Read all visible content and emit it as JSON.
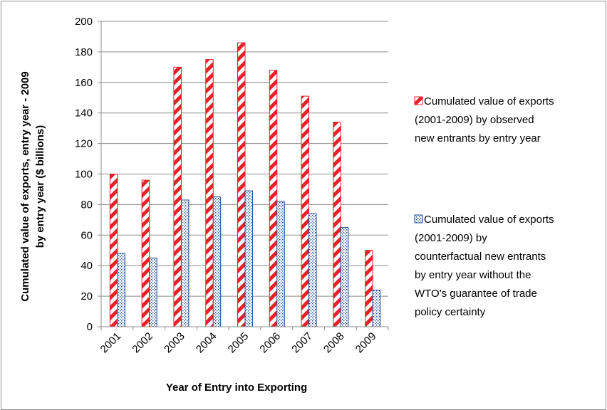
{
  "chart_data": {
    "type": "bar",
    "categories": [
      "2001",
      "2002",
      "2003",
      "2004",
      "2005",
      "2006",
      "2007",
      "2008",
      "2009"
    ],
    "series": [
      {
        "name_lines": [
          "Cumulated value of exports",
          "(2001-2009) by observed",
          "new entrants by entry year"
        ],
        "values": [
          100,
          96,
          170,
          175,
          186,
          168,
          151,
          134,
          50
        ],
        "color": "#e8202a",
        "pattern": "diagonal-stripes"
      },
      {
        "name_lines": [
          "Cumulated value of exports",
          "(2001-2009) by",
          "counterfactual new entrants",
          "by entry year without the",
          "WTO's guarantee of trade",
          "policy certainty"
        ],
        "values": [
          48,
          45,
          83,
          85,
          89,
          82,
          74,
          65,
          24
        ],
        "color": "#1f4e9c",
        "pattern": "dots"
      }
    ],
    "ylim": [
      0,
      200
    ],
    "yticks": [
      0,
      20,
      40,
      60,
      80,
      100,
      120,
      140,
      160,
      180,
      200
    ],
    "xlabel": "Year of Entry into Exporting",
    "ylabel_lines": [
      "Cumulated value of exports, entry year - 2009",
      "by entry year ($ billions)"
    ],
    "grid": true,
    "legend_position": "right"
  }
}
